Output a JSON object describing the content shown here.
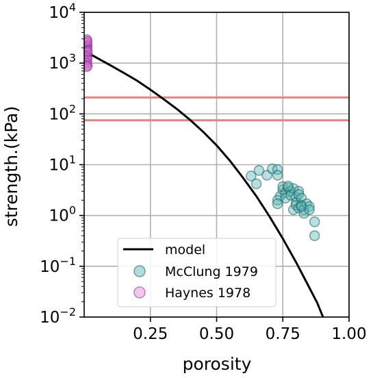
{
  "chart_data": {
    "type": "scatter",
    "xlabel": "porosity",
    "ylabel": "strength.(kPa)",
    "xlim": [
      0,
      1
    ],
    "ylim_log10": [
      -2,
      4
    ],
    "yscale": "log",
    "grid": true,
    "legend_position": "lower-center",
    "x_ticks": [
      {
        "value": 0.25,
        "label": "0.25"
      },
      {
        "value": 0.5,
        "label": "0.50"
      },
      {
        "value": 0.75,
        "label": "0.75"
      },
      {
        "value": 1.0,
        "label": "1.00"
      }
    ],
    "y_ticks": [
      {
        "exp": -2,
        "base": "10",
        "sup": "−2"
      },
      {
        "exp": -1,
        "base": "10",
        "sup": "−1"
      },
      {
        "exp": 0,
        "base": "10",
        "sup": "0"
      },
      {
        "exp": 1,
        "base": "10",
        "sup": "1"
      },
      {
        "exp": 2,
        "base": "10",
        "sup": "2"
      },
      {
        "exp": 3,
        "base": "10",
        "sup": "3"
      },
      {
        "exp": 4,
        "base": "10",
        "sup": "4"
      }
    ],
    "hlines": [
      {
        "y": 210,
        "color": "#f08080"
      },
      {
        "y": 75,
        "color": "#f08080"
      }
    ],
    "series": [
      {
        "name": "model",
        "kind": "line",
        "color": "#000000",
        "points": [
          [
            0.0,
            1750
          ],
          [
            0.05,
            1250
          ],
          [
            0.1,
            900
          ],
          [
            0.15,
            640
          ],
          [
            0.2,
            450
          ],
          [
            0.25,
            300
          ],
          [
            0.3,
            195
          ],
          [
            0.35,
            125
          ],
          [
            0.4,
            76
          ],
          [
            0.45,
            44
          ],
          [
            0.5,
            24
          ],
          [
            0.55,
            12
          ],
          [
            0.6,
            5.5
          ],
          [
            0.65,
            2.4
          ],
          [
            0.7,
            0.95
          ],
          [
            0.75,
            0.35
          ],
          [
            0.8,
            0.12
          ],
          [
            0.85,
            0.038
          ],
          [
            0.88,
            0.019
          ],
          [
            0.9,
            0.0105
          ],
          [
            0.905,
            0.0095
          ]
        ]
      },
      {
        "name": "McClung 1979",
        "kind": "scatter",
        "color": "#5fbbbb",
        "points": [
          [
            0.63,
            6.0
          ],
          [
            0.65,
            4.2
          ],
          [
            0.66,
            7.7
          ],
          [
            0.69,
            6.2
          ],
          [
            0.71,
            8.3
          ],
          [
            0.73,
            8.0
          ],
          [
            0.73,
            6.2
          ],
          [
            0.74,
            2.4
          ],
          [
            0.73,
            2.0
          ],
          [
            0.73,
            1.7
          ],
          [
            0.75,
            3.2
          ],
          [
            0.75,
            3.7
          ],
          [
            0.76,
            2.8
          ],
          [
            0.76,
            2.2
          ],
          [
            0.77,
            3.5
          ],
          [
            0.78,
            3.0
          ],
          [
            0.78,
            2.5
          ],
          [
            0.79,
            3.4
          ],
          [
            0.79,
            1.3
          ],
          [
            0.8,
            2.3
          ],
          [
            0.8,
            1.8
          ],
          [
            0.8,
            1.6
          ],
          [
            0.81,
            3.0
          ],
          [
            0.81,
            2.6
          ],
          [
            0.81,
            1.4
          ],
          [
            0.82,
            2.2
          ],
          [
            0.82,
            1.6
          ],
          [
            0.83,
            1.3
          ],
          [
            0.83,
            1.1
          ],
          [
            0.84,
            1.7
          ],
          [
            0.85,
            1.5
          ],
          [
            0.85,
            1.3
          ],
          [
            0.87,
            0.75
          ],
          [
            0.87,
            0.4
          ],
          [
            0.82,
            1.5
          ],
          [
            0.77,
            3.8
          ]
        ]
      },
      {
        "name": "Haynes 1978",
        "kind": "scatter",
        "color": "#d65fd6",
        "points": [
          [
            0.01,
            2900
          ],
          [
            0.01,
            2500
          ],
          [
            0.012,
            2200
          ],
          [
            0.01,
            2000
          ],
          [
            0.011,
            1800
          ],
          [
            0.01,
            1600
          ],
          [
            0.012,
            1400
          ],
          [
            0.01,
            1300
          ],
          [
            0.011,
            1150
          ],
          [
            0.01,
            1000
          ],
          [
            0.012,
            900
          ],
          [
            0.01,
            850
          ],
          [
            0.011,
            2700
          ],
          [
            0.012,
            1700
          ]
        ]
      }
    ]
  }
}
